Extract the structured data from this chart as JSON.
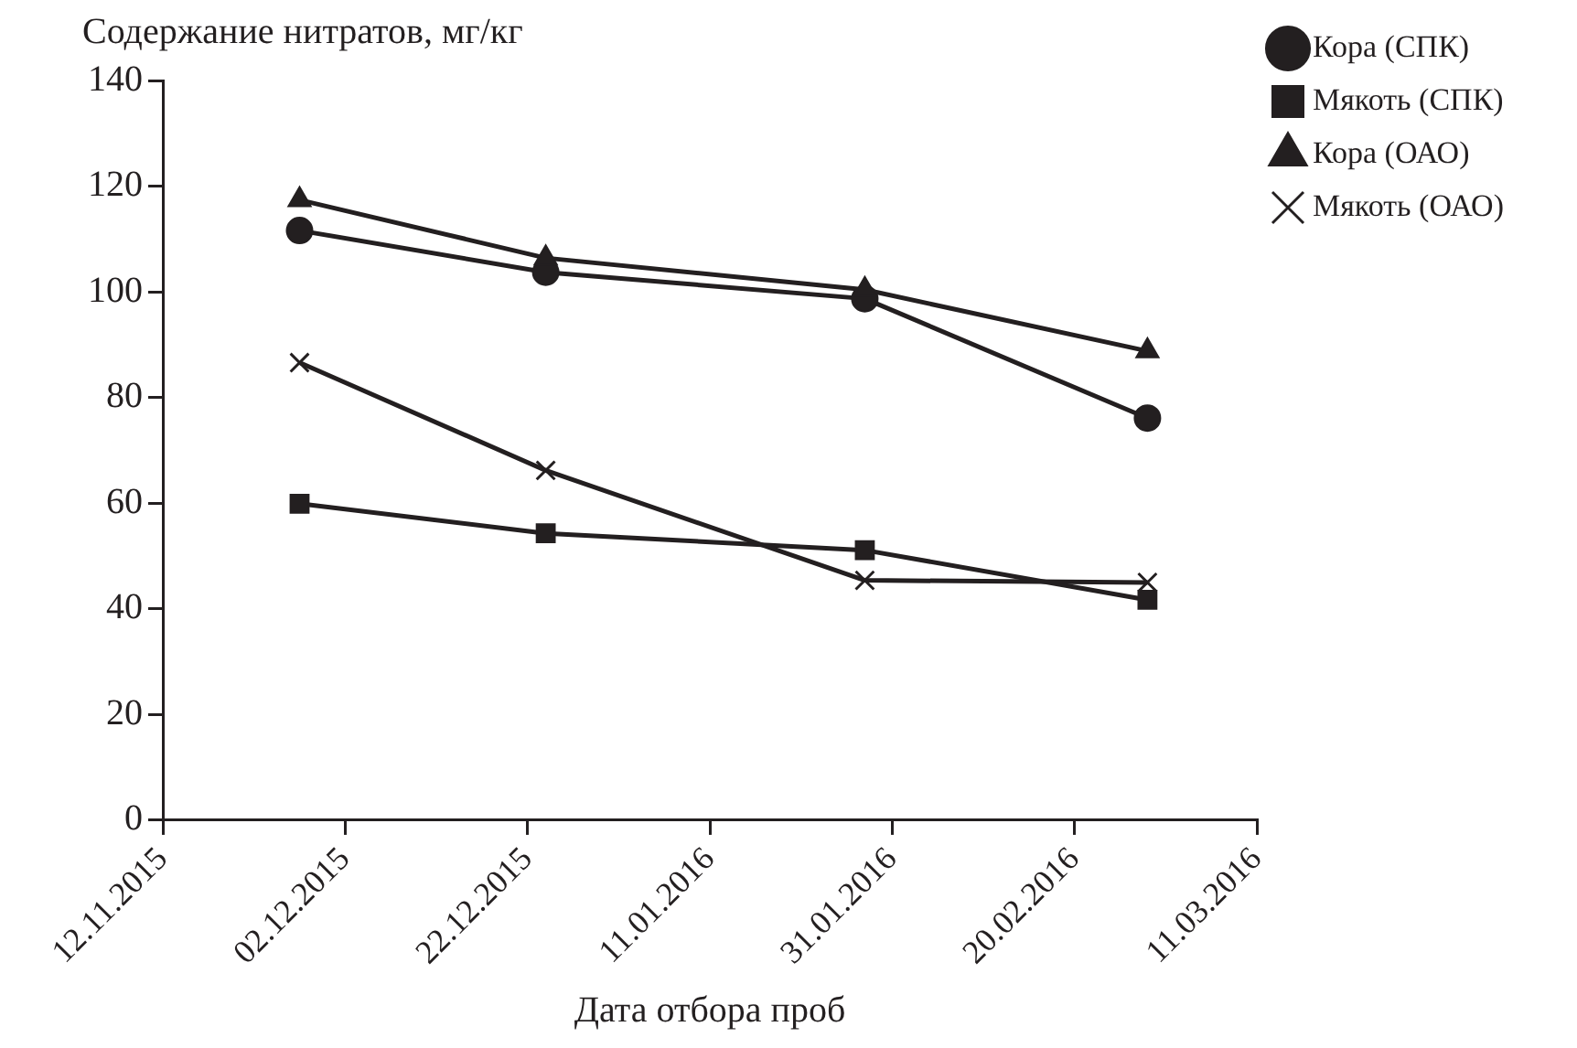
{
  "chart_data": {
    "type": "line",
    "ylabel": "Содержание нитратов, мг/кг",
    "xlabel": "Дата отбора проб",
    "x": [
      "2015-11-27",
      "2015-12-24",
      "2016-01-28",
      "2016-02-28"
    ],
    "series": [
      {
        "name": "Кора (СПК)",
        "color": "#231f20",
        "marker": "circle",
        "values": [
          111.6,
          103.7,
          98.7,
          76.1
        ]
      },
      {
        "name": "Мякоть (СПК)",
        "color": "#231f20",
        "marker": "square",
        "values": [
          59.9,
          54.3,
          51.1,
          41.7
        ]
      },
      {
        "name": "Кора (ОАО)",
        "color": "#231f20",
        "marker": "triangle",
        "values": [
          117.4,
          106.4,
          100.4,
          88.8
        ]
      },
      {
        "name": "Мякоть (ОАО)",
        "color": "#231f20",
        "marker": "cross",
        "values": [
          86.6,
          66.2,
          45.4,
          45
        ]
      }
    ],
    "xlim": [
      "2015-11-12",
      "2016-03-11"
    ],
    "xticks": [
      {
        "value": "2015-11-12",
        "label": "12.11.2015"
      },
      {
        "value": "2015-12-02",
        "label": "02.12.2015"
      },
      {
        "value": "2015-12-22",
        "label": "22.12.2015"
      },
      {
        "value": "2016-01-11",
        "label": "11.01.2016"
      },
      {
        "value": "2016-01-31",
        "label": "31.01.2016"
      },
      {
        "value": "2016-02-20",
        "label": "20.02.2016"
      },
      {
        "value": "2016-03-11",
        "label": "11.03.2016"
      }
    ],
    "ylim": [
      0,
      140
    ],
    "yticks": [
      0,
      20,
      40,
      60,
      80,
      100,
      120,
      140
    ],
    "grid": false,
    "legend": "top right",
    "line_style": "solid"
  }
}
